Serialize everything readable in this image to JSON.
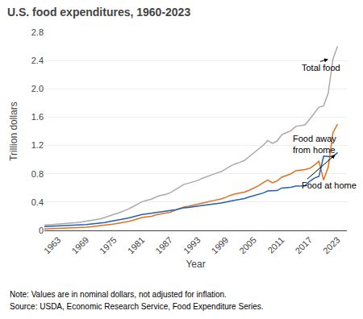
{
  "chart_data": {
    "type": "line",
    "title": "U.S. food expenditures, 1960-2023",
    "xlabel": "Year",
    "ylabel": "Trillion dollars",
    "note": "Note: Values are in nominal dollars, not adjusted for inflation.",
    "source": "Source: USDA, Economic Research Service, Food Expenditure Series.",
    "x": [
      1960,
      1961,
      1962,
      1963,
      1964,
      1965,
      1966,
      1967,
      1968,
      1969,
      1970,
      1971,
      1972,
      1973,
      1974,
      1975,
      1976,
      1977,
      1978,
      1979,
      1980,
      1981,
      1982,
      1983,
      1984,
      1985,
      1986,
      1987,
      1988,
      1989,
      1990,
      1991,
      1992,
      1993,
      1994,
      1995,
      1996,
      1997,
      1998,
      1999,
      2000,
      2001,
      2002,
      2003,
      2004,
      2005,
      2006,
      2007,
      2008,
      2009,
      2010,
      2011,
      2012,
      2013,
      2014,
      2015,
      2016,
      2017,
      2018,
      2019,
      2020,
      2021,
      2022,
      2023
    ],
    "series": [
      {
        "color": "#aaaaaa",
        "values": [
          0.075,
          0.079,
          0.083,
          0.087,
          0.092,
          0.098,
          0.106,
          0.111,
          0.119,
          0.128,
          0.139,
          0.15,
          0.163,
          0.183,
          0.208,
          0.228,
          0.247,
          0.27,
          0.3,
          0.333,
          0.374,
          0.406,
          0.424,
          0.441,
          0.472,
          0.494,
          0.506,
          0.53,
          0.57,
          0.61,
          0.65,
          0.667,
          0.687,
          0.707,
          0.737,
          0.763,
          0.79,
          0.81,
          0.83,
          0.87,
          0.91,
          0.94,
          0.96,
          0.99,
          1.04,
          1.09,
          1.14,
          1.2,
          1.27,
          1.23,
          1.26,
          1.35,
          1.38,
          1.41,
          1.47,
          1.48,
          1.49,
          1.57,
          1.66,
          1.74,
          1.76,
          1.94,
          2.42,
          2.6
        ]
      },
      {
        "color": "#e07020",
        "values": [
          0.02,
          0.022,
          0.023,
          0.025,
          0.027,
          0.029,
          0.033,
          0.036,
          0.04,
          0.045,
          0.05,
          0.056,
          0.063,
          0.072,
          0.082,
          0.091,
          0.1,
          0.112,
          0.126,
          0.143,
          0.163,
          0.181,
          0.191,
          0.2,
          0.218,
          0.23,
          0.24,
          0.256,
          0.281,
          0.306,
          0.33,
          0.342,
          0.355,
          0.368,
          0.385,
          0.401,
          0.417,
          0.432,
          0.444,
          0.468,
          0.496,
          0.514,
          0.523,
          0.54,
          0.567,
          0.598,
          0.63,
          0.672,
          0.712,
          0.672,
          0.697,
          0.752,
          0.78,
          0.8,
          0.843,
          0.85,
          0.86,
          0.876,
          0.921,
          0.978,
          0.71,
          0.895,
          1.38,
          1.5
        ]
      },
      {
        "color": "#2060b0",
        "values": [
          0.055,
          0.057,
          0.06,
          0.062,
          0.065,
          0.069,
          0.073,
          0.075,
          0.079,
          0.083,
          0.089,
          0.094,
          0.1,
          0.111,
          0.126,
          0.137,
          0.147,
          0.158,
          0.174,
          0.19,
          0.211,
          0.225,
          0.233,
          0.241,
          0.254,
          0.264,
          0.266,
          0.274,
          0.289,
          0.304,
          0.32,
          0.325,
          0.332,
          0.339,
          0.352,
          0.362,
          0.373,
          0.378,
          0.386,
          0.402,
          0.414,
          0.426,
          0.437,
          0.45,
          0.473,
          0.491,
          0.51,
          0.528,
          0.558,
          0.558,
          0.563,
          0.598,
          0.6,
          0.61,
          0.627,
          0.63,
          0.63,
          0.694,
          0.739,
          0.762,
          1.05,
          1.045,
          1.04,
          1.1
        ]
      }
    ],
    "xlim": [
      1960,
      2025
    ],
    "xticks": [
      1963,
      1969,
      1975,
      1981,
      1987,
      1993,
      1999,
      2005,
      2011,
      2017,
      2023
    ],
    "ylim": [
      0,
      2.8
    ],
    "yticks": [
      0,
      0.4,
      0.8,
      1.2,
      1.6,
      {
        "value": 2,
        "label": "2.0"
      },
      2.4,
      2.8
    ],
    "grid": "y",
    "annotations": [
      {
        "text": "Total food",
        "x": 2021,
        "y": 2.42,
        "text_x": 2015,
        "text_y": 2.3
      },
      {
        "text": "Food away\nfrom home",
        "x": 2021.5,
        "y": 1.2,
        "text_x": 2013,
        "text_y": 1.22
      },
      {
        "text": "Food at home",
        "x": 2022.5,
        "y": 1.07,
        "text_x": 2015,
        "text_y": 0.64
      }
    ]
  }
}
